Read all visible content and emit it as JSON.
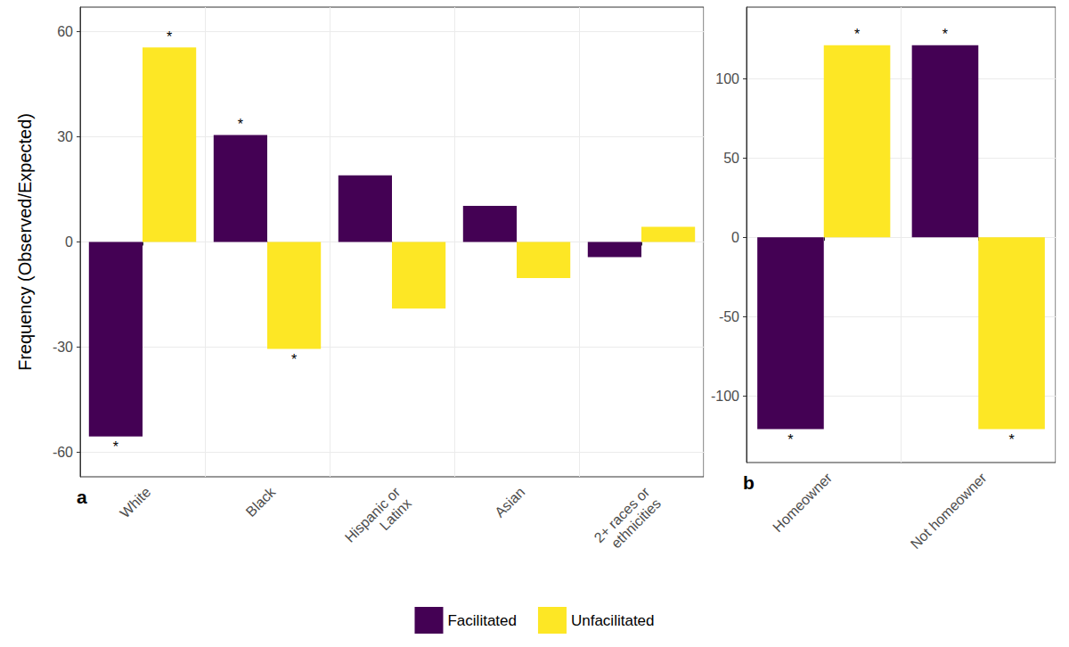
{
  "chart_data": [
    {
      "type": "bar",
      "panel_label": "a",
      "ylabel": "Frequency (Observed/Expected)",
      "categories": [
        "White",
        "Black",
        "Hispanic or\nLatinx",
        "Asian",
        "2+ races or\nethnicities"
      ],
      "series": [
        {
          "name": "Facilitated",
          "color": "#440154",
          "values": [
            -55.5,
            30.5,
            19,
            10.3,
            -4.3
          ],
          "annotations": [
            "*",
            "*",
            null,
            null,
            null
          ]
        },
        {
          "name": "Unfacilitated",
          "color": "#FDE725",
          "values": [
            55.5,
            -30.5,
            -19,
            -10.3,
            4.3
          ],
          "annotations": [
            "*",
            "*",
            null,
            null,
            null
          ]
        }
      ],
      "ylim": [
        -67,
        67
      ],
      "yticks": [
        -60,
        -30,
        0,
        30,
        60
      ],
      "grid": true,
      "legend": "bottom"
    },
    {
      "type": "bar",
      "panel_label": "b",
      "categories": [
        "Homeowner",
        "Not homeowner"
      ],
      "series": [
        {
          "name": "Facilitated",
          "color": "#440154",
          "values": [
            -121,
            121
          ],
          "annotations": [
            "*",
            "*"
          ]
        },
        {
          "name": "Unfacilitated",
          "color": "#FDE725",
          "values": [
            121,
            -121
          ],
          "annotations": [
            "*",
            "*"
          ]
        }
      ],
      "ylim": [
        -142,
        145
      ],
      "yticks": [
        -100,
        -50,
        0,
        50,
        100
      ],
      "grid": true
    }
  ]
}
